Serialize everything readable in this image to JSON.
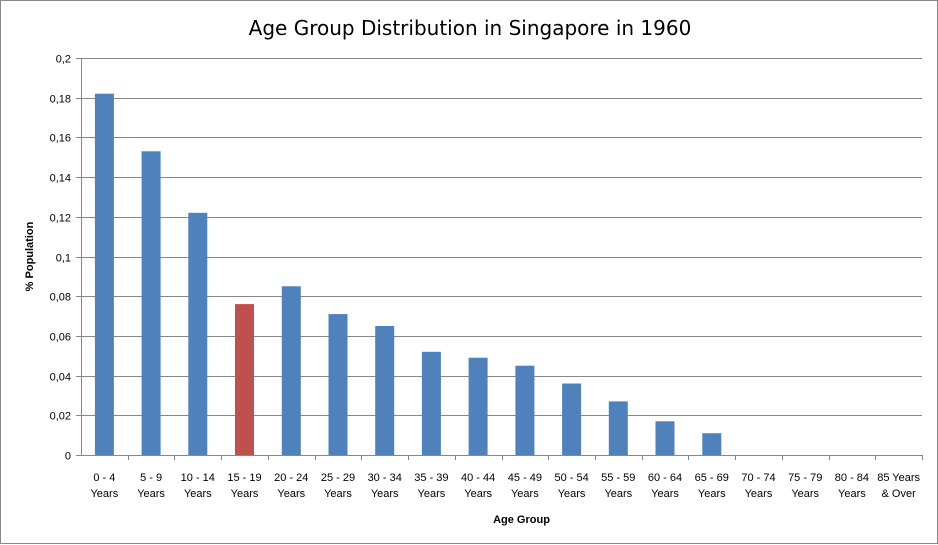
{
  "chart_data": {
    "type": "bar",
    "title": "Age Group Distribution in Singapore in 1960",
    "xlabel": "Age Group",
    "ylabel": "% Population",
    "ylim": [
      0,
      0.2
    ],
    "yticks": [
      "0",
      "0,02",
      "0,04",
      "0,06",
      "0,08",
      "0,1",
      "0,12",
      "0,14",
      "0,16",
      "0,18",
      "0,2"
    ],
    "grid": true,
    "categories": [
      [
        "0  -  4",
        "Years"
      ],
      [
        "5  -  9",
        "Years"
      ],
      [
        "10 - 14",
        "Years"
      ],
      [
        "15 - 19",
        "Years"
      ],
      [
        "20 - 24",
        "Years"
      ],
      [
        "25 - 29",
        "Years"
      ],
      [
        "30 - 34",
        "Years"
      ],
      [
        "35 - 39",
        "Years"
      ],
      [
        "40 - 44",
        "Years"
      ],
      [
        "45 - 49",
        "Years"
      ],
      [
        "50 - 54",
        "Years"
      ],
      [
        "55 - 59",
        "Years"
      ],
      [
        "60 - 64",
        "Years"
      ],
      [
        "65 - 69",
        "Years"
      ],
      [
        "70 - 74",
        "Years"
      ],
      [
        "75 - 79",
        "Years"
      ],
      [
        "80 - 84",
        "Years"
      ],
      [
        "85 Years",
        "& Over"
      ]
    ],
    "values": [
      0.182,
      0.153,
      0.122,
      0.076,
      0.085,
      0.071,
      0.065,
      0.052,
      0.049,
      0.045,
      0.036,
      0.027,
      0.017,
      0.011,
      0,
      0,
      0,
      0
    ],
    "colors": {
      "default": "#4F81BD",
      "highlight": "#C0504D",
      "highlight_index": 3
    }
  }
}
